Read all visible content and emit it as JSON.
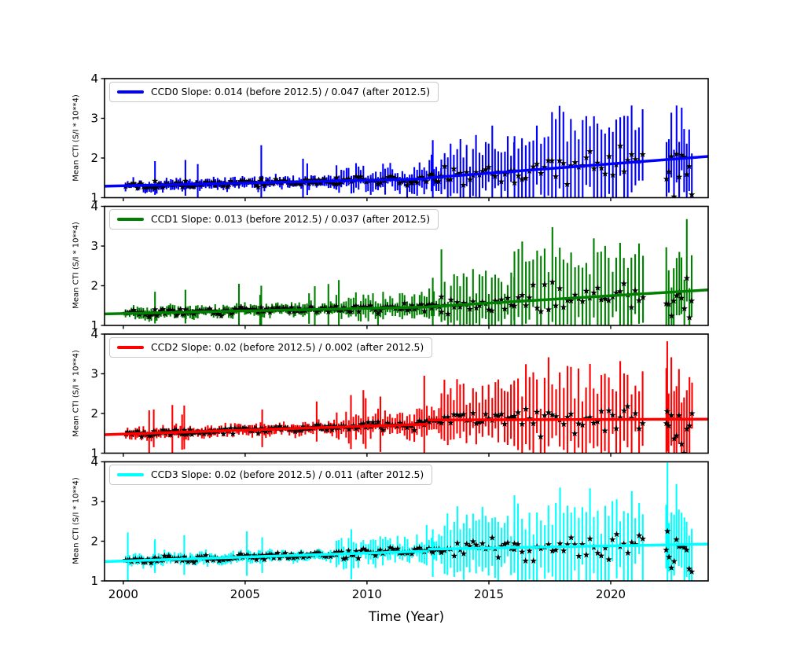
{
  "figure": {
    "background": "#ffffff",
    "marker_color": "#000000"
  },
  "chart_data": {
    "type": "errorbar",
    "title": "",
    "xlabel": "Time (Year)",
    "ylabel": "Mean CTI (S/I * 10**4)",
    "x_range": [
      1999.23,
      2024.0
    ],
    "x_ticks": [
      2000,
      2005,
      2010,
      2015,
      2020
    ],
    "y_range": [
      1,
      4
    ],
    "y_ticks": [
      1,
      2,
      3,
      4
    ],
    "grid": false,
    "legend_position": "upper-left-inside",
    "break_year": 2012.5,
    "data_gap": [
      2021.3,
      2022.28
    ],
    "panels": [
      {
        "id": "ccd0",
        "color": "#0000ff",
        "legend": "CCD0 Slope: 0.014 (before 2012.5) / 0.047 (after 2012.5)",
        "slope_before": 0.014,
        "slope_after": 0.047,
        "trend_before": {
          "y_at_2000": 1.3,
          "slope": 0.014
        },
        "trend_after": {
          "y_at_break": 1.5,
          "slope": 0.047
        },
        "seed": 101,
        "specials": [
          [
            2001.3,
            1.42,
            1.08,
            1.92
          ],
          [
            2002.55,
            1.42,
            1.05,
            1.95
          ],
          [
            2005.66,
            1.48,
            0.97,
            2.32
          ],
          [
            2012.7,
            1.55,
            0.95,
            2.45
          ]
        ]
      },
      {
        "id": "ccd1",
        "color": "#008000",
        "legend": "CCD1 Slope: 0.013 (before 2012.5) / 0.037 (after 2012.5)",
        "slope_before": 0.013,
        "slope_after": 0.037,
        "trend_before": {
          "y_at_2000": 1.3,
          "slope": 0.013
        },
        "trend_after": {
          "y_at_break": 1.47,
          "slope": 0.037
        },
        "seed": 202,
        "specials": [
          [
            2001.3,
            1.4,
            1.05,
            1.85
          ],
          [
            2002.55,
            1.4,
            1.05,
            1.9
          ],
          [
            2005.66,
            1.45,
            1.0,
            2.0
          ],
          [
            2012.7,
            1.52,
            0.95,
            2.2
          ]
        ]
      },
      {
        "id": "ccd2",
        "color": "#ff0000",
        "legend": "CCD2 Slope: 0.02 (before 2012.5) / 0.002 (after 2012.5)",
        "slope_before": 0.02,
        "slope_after": 0.002,
        "trend_before": {
          "y_at_2000": 1.48,
          "slope": 0.02
        },
        "trend_after": {
          "y_at_break": 1.835,
          "slope": 0.002
        },
        "seed": 303,
        "specials": [
          [
            2001.25,
            1.55,
            1.15,
            2.1
          ],
          [
            2002.5,
            1.58,
            1.1,
            2.2
          ],
          [
            2005.7,
            1.62,
            1.15,
            2.1
          ],
          [
            2012.35,
            1.78,
            1.0,
            2.95
          ],
          [
            2022.32,
            2.05,
            1.05,
            3.82
          ]
        ]
      },
      {
        "id": "ccd3",
        "color": "#00ffff",
        "legend": "CCD3 Slope: 0.02 (before 2012.5) / 0.011 (after 2012.5)",
        "slope_before": 0.02,
        "slope_after": 0.011,
        "trend_before": {
          "y_at_2000": 1.5,
          "slope": 0.02
        },
        "trend_after": {
          "y_at_break": 1.8,
          "slope": 0.011
        },
        "seed": 404,
        "specials": [
          [
            2001.3,
            1.58,
            1.2,
            2.05
          ],
          [
            2002.5,
            1.6,
            1.15,
            2.15
          ],
          [
            2005.7,
            1.65,
            1.2,
            2.1
          ],
          [
            2012.7,
            1.72,
            1.1,
            2.3
          ],
          [
            2022.33,
            2.25,
            1.0,
            3.98
          ]
        ]
      }
    ],
    "eras": [
      {
        "from": 2000.1,
        "to": 2008.7,
        "step": 0.08,
        "err_lo": [
          0.05,
          0.17
        ],
        "err_hi": [
          0.05,
          0.17
        ],
        "spike_p": 0.035,
        "spike_add": [
          0.25,
          0.6
        ],
        "sigma": 0.035,
        "offset": 0.0,
        "wobble_amp": 0.025,
        "wobble_period": 1.5
      },
      {
        "from": 2008.75,
        "to": 2013.0,
        "step": 0.1,
        "err_lo": [
          0.1,
          0.38
        ],
        "err_hi": [
          0.1,
          0.4
        ],
        "spike_p": 0.05,
        "spike_add": [
          0.2,
          0.5
        ],
        "sigma": 0.055,
        "offset": 0.0,
        "wobble_amp": 0.03,
        "wobble_period": 1.2
      },
      {
        "from": 2013.05,
        "to": 2016.0,
        "step": 0.13,
        "err_lo": [
          0.25,
          0.75
        ],
        "err_hi": [
          0.3,
          0.95
        ],
        "spike_p": 0.05,
        "spike_add": [
          0.2,
          0.5
        ],
        "sigma": 0.11,
        "offset": 0.0,
        "wobble_amp": 0.0,
        "wobble_period": 1.0
      },
      {
        "from": 2016.05,
        "to": 2021.3,
        "step": 0.155,
        "err_lo": [
          0.45,
          1.15
        ],
        "err_hi": [
          0.55,
          1.45
        ],
        "spike_p": 0.0,
        "spike_add": [
          0.0,
          0.0
        ],
        "sigma": 0.18,
        "offset": 0.0,
        "wobble_amp": 0.0,
        "wobble_period": 1.0
      },
      {
        "from": 2022.28,
        "to": 2023.35,
        "step": 0.105,
        "err_lo": [
          0.35,
          0.95
        ],
        "err_hi": [
          0.7,
          1.5
        ],
        "spike_p": 0.0,
        "spike_add": [
          0.0,
          0.0
        ],
        "sigma": 0.28,
        "offset": -0.28,
        "wobble_amp": 0.0,
        "wobble_period": 1.0
      }
    ]
  }
}
